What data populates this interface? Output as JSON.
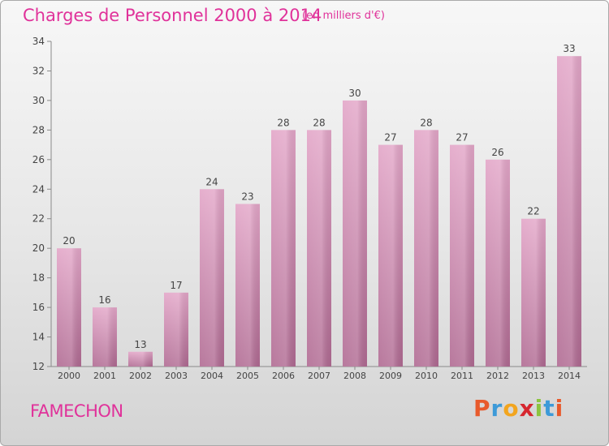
{
  "title": "Charges de Personnel 2000 à 2014",
  "subtitle": "(en milliers d'€)",
  "commune": "FAMECHON",
  "brand": {
    "letters": [
      "P",
      "r",
      "o",
      "x",
      "i",
      "t",
      "i"
    ],
    "colors": [
      "#e85a2c",
      "#3d9ad8",
      "#f2a51f",
      "#d6262f",
      "#8cc43f",
      "#3d9ad8",
      "#e85a2c"
    ]
  },
  "colors": {
    "accent": "#e0329a",
    "bar": "#d68ab2"
  },
  "chart_data": {
    "type": "bar",
    "title": "Charges de Personnel 2000 à 2014",
    "subtitle": "(en milliers d'€)",
    "categories": [
      "2000",
      "2001",
      "2002",
      "2003",
      "2004",
      "2005",
      "2006",
      "2007",
      "2008",
      "2009",
      "2010",
      "2011",
      "2012",
      "2013",
      "2014"
    ],
    "values": [
      20,
      16,
      13,
      17,
      24,
      23,
      28,
      28,
      30,
      27,
      28,
      27,
      26,
      22,
      33
    ],
    "ylim": [
      12,
      34
    ],
    "yticks": [
      12,
      14,
      16,
      18,
      20,
      22,
      24,
      26,
      28,
      30,
      32,
      34
    ],
    "grid": false,
    "data_labels": true
  }
}
